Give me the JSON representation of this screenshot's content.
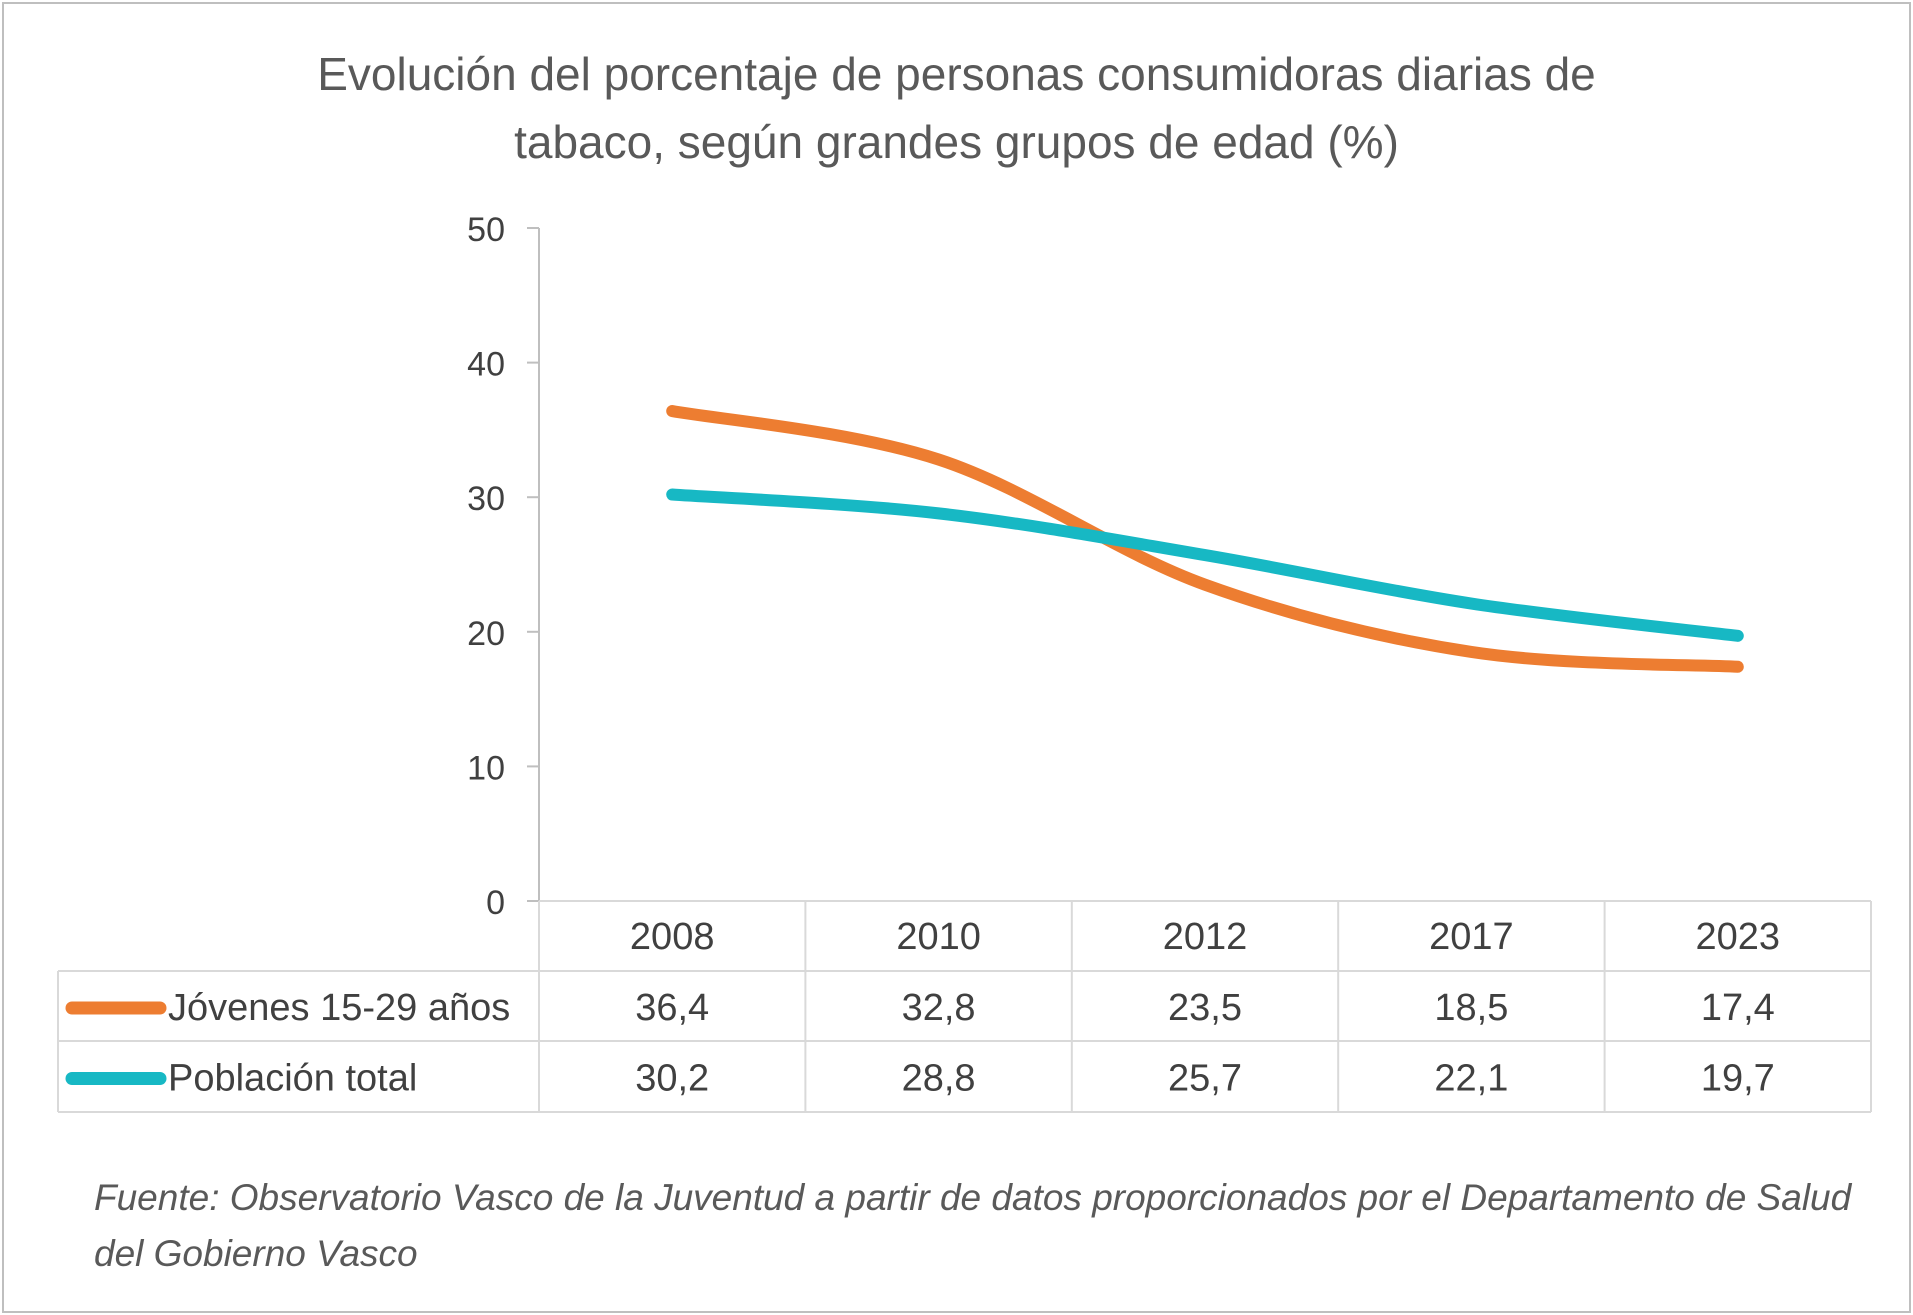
{
  "chart_data": {
    "type": "line",
    "title_lines": [
      "Evolución del porcentaje de personas consumidoras diarias de",
      "tabaco, según grandes grupos de edad (%)"
    ],
    "categories": [
      "2008",
      "2010",
      "2012",
      "2017",
      "2023"
    ],
    "series": [
      {
        "name": "Jóvenes 15-29 años",
        "color": "#ED7D31",
        "values": [
          36.4,
          32.8,
          23.5,
          18.5,
          17.4
        ],
        "labels": [
          "36,4",
          "32,8",
          "23,5",
          "18,5",
          "17,4"
        ]
      },
      {
        "name": "Población total",
        "color": "#17B8C4",
        "values": [
          30.2,
          28.8,
          25.7,
          22.1,
          19.7
        ],
        "labels": [
          "30,2",
          "28,8",
          "25,7",
          "22,1",
          "19,7"
        ]
      }
    ],
    "yaxis": {
      "ticks": [
        0,
        10,
        20,
        30,
        40,
        50
      ],
      "tick_labels": [
        "0",
        "10",
        "20",
        "30",
        "40",
        "50"
      ],
      "ylim": [
        0,
        50
      ]
    },
    "xlabel": "",
    "ylabel": "",
    "grid": false,
    "legend": "data-table-left"
  },
  "source": "Fuente: Observatorio Vasco de la Juventud a partir de datos proporcionados por el Departamento de Salud del Gobierno Vasco"
}
